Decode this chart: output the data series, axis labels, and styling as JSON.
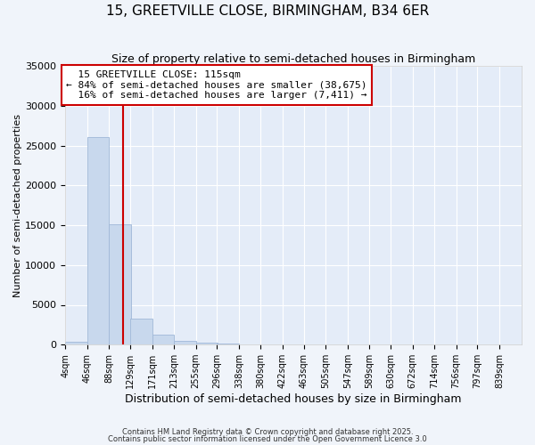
{
  "title": "15, GREETVILLE CLOSE, BIRMINGHAM, B34 6ER",
  "subtitle": "Size of property relative to semi-detached houses in Birmingham",
  "xlabel": "Distribution of semi-detached houses by size in Birmingham",
  "ylabel": "Number of semi-detached properties",
  "bins": [
    4,
    46,
    88,
    129,
    171,
    213,
    255,
    296,
    338,
    380,
    422,
    463,
    505,
    547,
    589,
    630,
    672,
    714,
    756,
    797,
    839
  ],
  "counts": [
    400,
    26100,
    15100,
    3300,
    1200,
    500,
    300,
    150,
    0,
    0,
    0,
    0,
    0,
    0,
    0,
    0,
    0,
    0,
    0,
    0
  ],
  "bar_color": "#c8d8ed",
  "bar_edge_color": "#a0b8d8",
  "property_size": 115,
  "property_name": "15 GREETVILLE CLOSE: 115sqm",
  "pct_smaller": 84,
  "n_smaller": 38675,
  "pct_larger": 16,
  "n_larger": 7411,
  "vline_color": "#cc0000",
  "annotation_box_color": "#cc0000",
  "ylim": [
    0,
    35000
  ],
  "yticks": [
    0,
    5000,
    10000,
    15000,
    20000,
    25000,
    30000,
    35000
  ],
  "bg_color": "#f0f4fa",
  "plot_bg_color": "#e4ecf8",
  "footer1": "Contains HM Land Registry data © Crown copyright and database right 2025.",
  "footer2": "Contains public sector information licensed under the Open Government Licence 3.0"
}
